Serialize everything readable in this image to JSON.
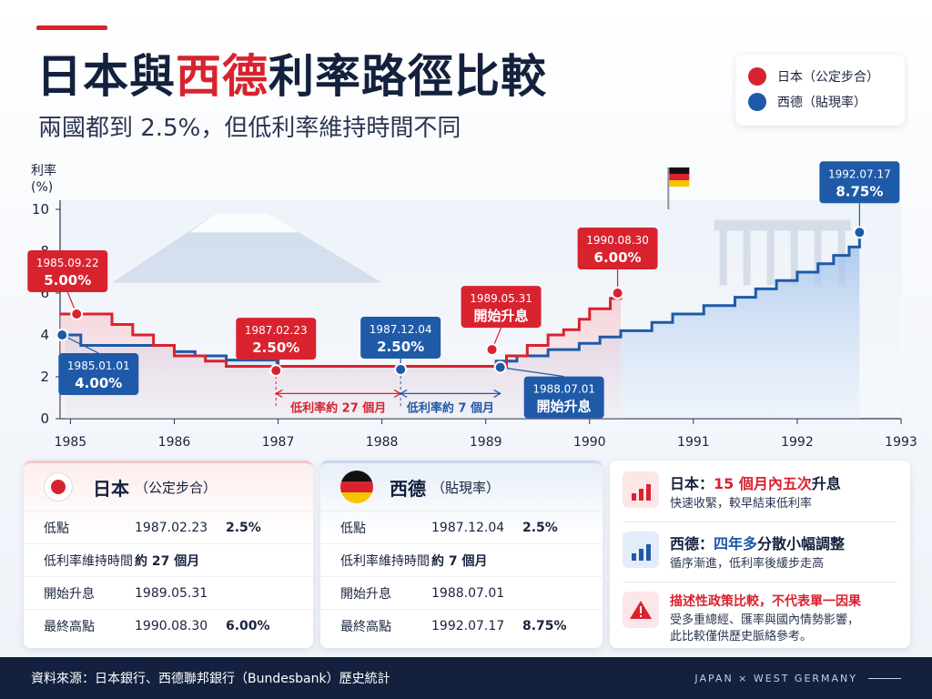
{
  "header": {
    "title_part1": "日本與",
    "title_part2": "西德",
    "title_part3": "利率路徑比較",
    "subtitle": "兩國都到 2.5%，但低利率維持時間不同"
  },
  "legend": {
    "items": [
      {
        "label": "日本（公定步合）",
        "color": "#d8232f"
      },
      {
        "label": "西德（貼現率）",
        "color": "#1f5aa8"
      }
    ]
  },
  "chart_data": {
    "type": "line",
    "ylabel": "利率\n(%)",
    "ylabel_line1": "利率",
    "ylabel_line2": "(%)",
    "ylim": [
      0,
      10
    ],
    "yticks": [
      0,
      2,
      4,
      6,
      8,
      10
    ],
    "xlim": [
      1984.9,
      1993
    ],
    "xticks": [
      1985,
      1986,
      1987,
      1988,
      1989,
      1990,
      1991,
      1992,
      1993
    ],
    "grid": false,
    "series": [
      {
        "name": "日本（公定步合）",
        "color": "#d8232f",
        "step": true,
        "points": [
          [
            1984.9,
            5.0
          ],
          [
            1985.2,
            5.0
          ],
          [
            1985.4,
            4.5
          ],
          [
            1985.6,
            4.0
          ],
          [
            1985.8,
            3.5
          ],
          [
            1986.0,
            3.0
          ],
          [
            1986.3,
            2.75
          ],
          [
            1986.5,
            2.5
          ],
          [
            1987.14,
            2.5
          ],
          [
            1987.6,
            2.5
          ],
          [
            1988.2,
            2.5
          ],
          [
            1989.0,
            2.5
          ],
          [
            1989.2,
            3.0
          ],
          [
            1989.4,
            3.5
          ],
          [
            1989.6,
            4.0
          ],
          [
            1989.75,
            4.25
          ],
          [
            1989.9,
            4.75
          ],
          [
            1990.0,
            5.25
          ],
          [
            1990.2,
            5.75
          ],
          [
            1990.3,
            6.0
          ]
        ]
      },
      {
        "name": "西德（貼現率）",
        "color": "#1f5aa8",
        "step": true,
        "points": [
          [
            1984.95,
            4.0
          ],
          [
            1985.1,
            3.5
          ],
          [
            1985.7,
            3.5
          ],
          [
            1986.0,
            3.2
          ],
          [
            1986.2,
            3.0
          ],
          [
            1986.5,
            2.8
          ],
          [
            1987.0,
            2.5
          ],
          [
            1987.93,
            2.5
          ],
          [
            1988.5,
            2.5
          ],
          [
            1989.0,
            2.5
          ],
          [
            1989.1,
            2.75
          ],
          [
            1989.3,
            3.0
          ],
          [
            1989.6,
            3.3
          ],
          [
            1989.9,
            3.6
          ],
          [
            1990.1,
            3.9
          ],
          [
            1990.3,
            4.2
          ],
          [
            1990.6,
            4.6
          ],
          [
            1990.8,
            5.0
          ],
          [
            1991.1,
            5.4
          ],
          [
            1991.4,
            5.8
          ],
          [
            1991.6,
            6.2
          ],
          [
            1991.8,
            6.6
          ],
          [
            1992.0,
            7.0
          ],
          [
            1992.2,
            7.4
          ],
          [
            1992.35,
            7.8
          ],
          [
            1992.5,
            8.2
          ],
          [
            1992.6,
            8.75
          ]
        ]
      }
    ],
    "callouts": [
      {
        "series": "jp",
        "x": 1985.06,
        "y": 5.0,
        "date": "1985.09.22",
        "value": "5.00%"
      },
      {
        "series": "jp",
        "x": 1986.98,
        "y": 2.3,
        "date": "1987.02.23",
        "value": "2.50%"
      },
      {
        "series": "jp",
        "x": 1989.06,
        "y": 3.3,
        "date": "1989.05.31",
        "value": "開始升息"
      },
      {
        "series": "jp",
        "x": 1990.27,
        "y": 6.0,
        "date": "1990.08.30",
        "value": "6.00%"
      },
      {
        "series": "de",
        "x": 1984.92,
        "y": 4.0,
        "date": "1985.01.01",
        "value": "4.00%"
      },
      {
        "series": "de",
        "x": 1988.18,
        "y": 2.35,
        "date": "1987.12.04",
        "value": "2.50%"
      },
      {
        "series": "de",
        "x": 1989.14,
        "y": 2.45,
        "date": "1988.07.01",
        "value": "開始升息"
      },
      {
        "series": "de",
        "x": 1992.6,
        "y": 8.9,
        "date": "1992.07.17",
        "value": "8.75%"
      }
    ],
    "spans": [
      {
        "label": "低利率約 27 個月",
        "from": 1986.98,
        "to": 1988.18,
        "color": "#d8232f"
      },
      {
        "label": "低利率約 7 個月",
        "from": 1988.18,
        "to": 1989.14,
        "color": "#1f5aa8"
      }
    ]
  },
  "panels": {
    "japan": {
      "title": "日本",
      "sub": "（公定步合）",
      "rows": [
        {
          "k": "低點",
          "d": "1987.02.23",
          "v": "2.5%"
        },
        {
          "k": "低利率維持時間",
          "d": "約 27 個月",
          "v": ""
        },
        {
          "k": "開始升息",
          "d": "1989.05.31",
          "v": ""
        },
        {
          "k": "最終高點",
          "d": "1990.08.30",
          "v": "6.00%"
        }
      ]
    },
    "germany": {
      "title": "西德",
      "sub": "（貼現率）",
      "rows": [
        {
          "k": "低點",
          "d": "1987.12.04",
          "v": "2.5%"
        },
        {
          "k": "低利率維持時間",
          "d": "約 7 個月",
          "v": ""
        },
        {
          "k": "開始升息",
          "d": "1988.07.01",
          "v": ""
        },
        {
          "k": "最終高點",
          "d": "1992.07.17",
          "v": "8.75%"
        }
      ]
    }
  },
  "insights": {
    "japan": {
      "label": "日本：",
      "highlight": "15 個月內五次",
      "tail": "升息",
      "desc": "快速收緊，較早結束低利率"
    },
    "germany": {
      "label": "西德：",
      "highlight": "四年多",
      "tail": "分散小幅調整",
      "desc": "循序漸進，低利率後緩步走高"
    },
    "warning": {
      "title": "描述性政策比較，不代表單一因果",
      "desc1": "受多重總經、匯率與國內情勢影響，",
      "desc2": "此比較僅供歷史脈絡參考。"
    }
  },
  "footer": {
    "source": "資料來源：日本銀行、西德聯邦銀行（Bundesbank）歷史統計",
    "brand": "JAPAN  ×  WEST GERMANY"
  },
  "colors": {
    "jp": "#d8232f",
    "de": "#1f5aa8",
    "navy": "#13213f"
  }
}
